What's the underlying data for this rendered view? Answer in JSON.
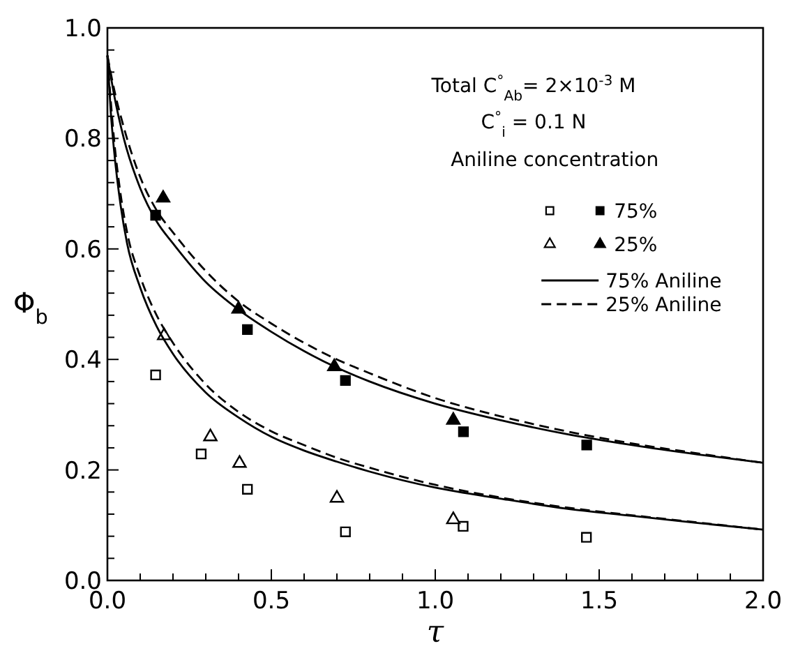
{
  "chart_data": {
    "type": "scatter",
    "xlabel": "τ",
    "ylabel": "Φ$_{b}$",
    "legend_title": "Aniline concentration",
    "annotations": [
      "Total C$^{°}$$_{Ab}$= 2×10$^{-3}$ M",
      "C$^{°}$$_{i}$ = 0.1 N"
    ],
    "xlim": [
      0,
      2
    ],
    "ylim": [
      0,
      1
    ],
    "xticks": [
      {
        "value": 0,
        "label": "0.0"
      },
      {
        "value": 0.1,
        "label": null
      },
      {
        "value": 0.2,
        "label": null
      },
      {
        "value": 0.3,
        "label": null
      },
      {
        "value": 0.4,
        "label": null
      },
      {
        "value": 0.5,
        "label": "0.5"
      },
      {
        "value": 0.6,
        "label": null
      },
      {
        "value": 0.7,
        "label": null
      },
      {
        "value": 0.8,
        "label": null
      },
      {
        "value": 0.9,
        "label": null
      },
      {
        "value": 1,
        "label": "1.0"
      },
      {
        "value": 1.1,
        "label": null
      },
      {
        "value": 1.2,
        "label": null
      },
      {
        "value": 1.3,
        "label": null
      },
      {
        "value": 1.4,
        "label": null
      },
      {
        "value": 1.5,
        "label": "1.5"
      },
      {
        "value": 1.6,
        "label": null
      },
      {
        "value": 1.7,
        "label": null
      },
      {
        "value": 1.8,
        "label": null
      },
      {
        "value": 1.9,
        "label": null
      },
      {
        "value": 2,
        "label": "2.0"
      }
    ],
    "yticks": [
      {
        "value": 0,
        "label": "0.0"
      },
      {
        "value": 0.04,
        "label": null
      },
      {
        "value": 0.08,
        "label": null
      },
      {
        "value": 0.12,
        "label": null
      },
      {
        "value": 0.16,
        "label": null
      },
      {
        "value": 0.2,
        "label": "0.2"
      },
      {
        "value": 0.24,
        "label": null
      },
      {
        "value": 0.28,
        "label": null
      },
      {
        "value": 0.32,
        "label": null
      },
      {
        "value": 0.36,
        "label": null
      },
      {
        "value": 0.4,
        "label": "0.4"
      },
      {
        "value": 0.44,
        "label": null
      },
      {
        "value": 0.48,
        "label": null
      },
      {
        "value": 0.52,
        "label": null
      },
      {
        "value": 0.56,
        "label": null
      },
      {
        "value": 0.6,
        "label": "0.6"
      },
      {
        "value": 0.64,
        "label": null
      },
      {
        "value": 0.68,
        "label": null
      },
      {
        "value": 0.72,
        "label": null
      },
      {
        "value": 0.76,
        "label": null
      },
      {
        "value": 0.8,
        "label": "0.8"
      },
      {
        "value": 0.84,
        "label": null
      },
      {
        "value": 0.88,
        "label": null
      },
      {
        "value": 0.92,
        "label": null
      },
      {
        "value": 0.96,
        "label": null
      },
      {
        "value": 1,
        "label": "1.0"
      }
    ],
    "grid": false,
    "legend": "top right",
    "series": [
      {
        "marker": "square",
        "color": "#ffffff",
        "x": [
          0.147,
          0.286,
          0.427,
          0.726,
          1.085,
          1.461
        ],
        "values": [
          0.372,
          0.229,
          0.165,
          0.088,
          0.098,
          0.078
        ]
      },
      {
        "name": "75%",
        "marker": "square",
        "color": "#000000",
        "x": [
          0.147,
          0.427,
          0.726,
          1.086,
          1.462
        ],
        "values": [
          0.661,
          0.454,
          0.362,
          0.269,
          0.245
        ]
      },
      {
        "marker": "triangle",
        "color": "#ffffff",
        "x": [
          0.173,
          0.314,
          0.403,
          0.7,
          1.055
        ],
        "values": [
          0.443,
          0.26,
          0.212,
          0.149,
          0.11
        ]
      },
      {
        "name": "25%",
        "marker": "triangle",
        "color": "#000000",
        "x": [
          0.17,
          0.4,
          0.692,
          1.055
        ],
        "values": [
          0.692,
          0.491,
          0.387,
          0.29
        ]
      },
      {
        "name": "75% Aniline",
        "type": "line",
        "line_style": "solid",
        "marker": "none",
        "color": "#000000",
        "x": [
          0,
          0.02,
          0.05,
          0.1,
          0.15,
          0.2,
          0.3,
          0.4,
          0.5,
          0.6,
          0.7,
          0.8,
          1.0,
          1.2,
          1.4,
          1.6,
          1.8,
          2.0
        ],
        "values": [
          0.95,
          0.88,
          0.8,
          0.71,
          0.65,
          0.61,
          0.54,
          0.49,
          0.45,
          0.415,
          0.385,
          0.36,
          0.32,
          0.29,
          0.265,
          0.245,
          0.228,
          0.213
        ]
      },
      {
        "name": "25% Aniline",
        "type": "line",
        "line_style": "dashed",
        "marker": "none",
        "color": "#000000",
        "x": [
          0,
          0.02,
          0.05,
          0.1,
          0.15,
          0.2,
          0.3,
          0.4,
          0.5,
          0.6,
          0.7,
          0.8,
          1.0,
          1.2,
          1.4,
          1.6,
          1.8,
          2.0
        ],
        "values": [
          0.95,
          0.89,
          0.82,
          0.73,
          0.67,
          0.63,
          0.56,
          0.505,
          0.465,
          0.43,
          0.4,
          0.375,
          0.33,
          0.297,
          0.27,
          0.248,
          0.23,
          0.213
        ]
      },
      {
        "type": "line",
        "line_style": "solid",
        "marker": "none",
        "color": "#000000",
        "x": [
          0,
          0.01,
          0.02,
          0.04,
          0.06,
          0.1,
          0.15,
          0.2,
          0.3,
          0.4,
          0.5,
          0.6,
          0.7,
          0.8,
          1.0,
          1.2,
          1.4,
          1.6,
          1.8,
          2.0
        ],
        "values": [
          0.95,
          0.85,
          0.78,
          0.68,
          0.61,
          0.53,
          0.46,
          0.41,
          0.34,
          0.295,
          0.26,
          0.235,
          0.215,
          0.197,
          0.168,
          0.148,
          0.13,
          0.117,
          0.104,
          0.092
        ]
      },
      {
        "type": "line",
        "line_style": "dashed",
        "marker": "none",
        "color": "#000000",
        "x": [
          0,
          0.01,
          0.02,
          0.04,
          0.06,
          0.1,
          0.15,
          0.2,
          0.3,
          0.4,
          0.5,
          0.6,
          0.7,
          0.8,
          1.0,
          1.2,
          1.4,
          1.6,
          1.8,
          2.0
        ],
        "values": [
          0.95,
          0.87,
          0.8,
          0.7,
          0.63,
          0.55,
          0.48,
          0.43,
          0.355,
          0.305,
          0.27,
          0.245,
          0.222,
          0.204,
          0.173,
          0.15,
          0.132,
          0.118,
          0.105,
          0.092
        ]
      }
    ]
  }
}
